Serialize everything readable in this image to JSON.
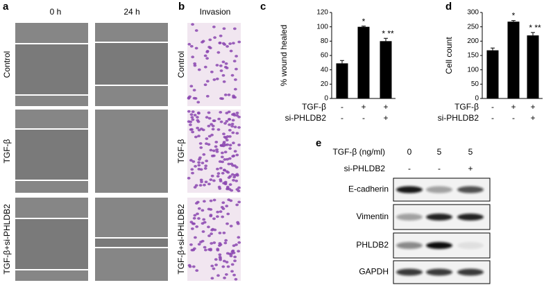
{
  "figure": {
    "panel_a": {
      "label": "a",
      "columns": [
        "0 h",
        "24 h"
      ],
      "rows": [
        "Control",
        "TGF-β",
        "TGF-β+si-PHLDB2"
      ]
    },
    "panel_b": {
      "label": "b",
      "title": "Invasion",
      "rows": [
        "Control",
        "TGF-β",
        "TGF-β+si-PHLDB2"
      ]
    },
    "panel_e": {
      "label": "e",
      "conditions": [
        {
          "label": "TGF-β (ng/ml)",
          "values": [
            "0",
            "5",
            "5"
          ]
        },
        {
          "label": "si-PHLDB2",
          "values": [
            "-",
            "-",
            "+"
          ]
        }
      ],
      "bands": [
        "E-cadherin",
        "Vimentin",
        "PHLDB2",
        "GAPDH"
      ]
    }
  },
  "chart_data": [
    {
      "type": "bar",
      "panel_label": "c",
      "y_label": "% wound healed",
      "values": [
        49,
        100,
        80
      ],
      "errors": [
        4,
        1,
        4
      ],
      "annotations": [
        null,
        "*",
        "* **"
      ],
      "color": "#000000",
      "ylim": [
        0,
        120
      ],
      "yticks": [
        0,
        20,
        40,
        60,
        80,
        100,
        120
      ],
      "conditions": [
        {
          "label": "TGF-β",
          "signs": [
            "-",
            "+",
            "+"
          ]
        },
        {
          "label": "si-PHLDB2",
          "signs": [
            "-",
            "-",
            "+"
          ]
        }
      ]
    },
    {
      "type": "bar",
      "panel_label": "d",
      "y_label": "Cell count",
      "values": [
        168,
        268,
        220
      ],
      "errors": [
        8,
        4,
        10
      ],
      "annotations": [
        null,
        "*",
        "* **"
      ],
      "color": "#000000",
      "ylim": [
        0,
        300
      ],
      "yticks": [
        0,
        50,
        100,
        150,
        200,
        250,
        300
      ],
      "conditions": [
        {
          "label": "TGF-β",
          "signs": [
            "-",
            "+",
            "+"
          ]
        },
        {
          "label": "si-PHLDB2",
          "signs": [
            "-",
            "-",
            "+"
          ]
        }
      ]
    }
  ]
}
